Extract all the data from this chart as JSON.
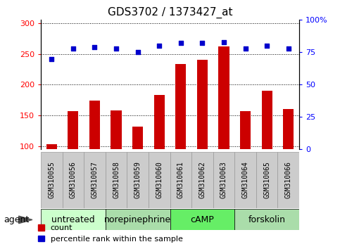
{
  "title": "GDS3702 / 1373427_at",
  "samples": [
    "GSM310055",
    "GSM310056",
    "GSM310057",
    "GSM310058",
    "GSM310059",
    "GSM310060",
    "GSM310061",
    "GSM310062",
    "GSM310063",
    "GSM310064",
    "GSM310065",
    "GSM310066"
  ],
  "counts": [
    103,
    157,
    174,
    158,
    132,
    183,
    233,
    240,
    262,
    157,
    190,
    160
  ],
  "percentiles": [
    70,
    78,
    79,
    78,
    75,
    80,
    82,
    82,
    83,
    78,
    80,
    78
  ],
  "groups": [
    {
      "label": "untreated",
      "start": 0,
      "end": 3,
      "color": "#ccffcc"
    },
    {
      "label": "norepinephrine",
      "start": 3,
      "end": 6,
      "color": "#aaddaa"
    },
    {
      "label": "cAMP",
      "start": 6,
      "end": 9,
      "color": "#66ee66"
    },
    {
      "label": "forskolin",
      "start": 9,
      "end": 12,
      "color": "#aaddaa"
    }
  ],
  "ylim_left": [
    95,
    305
  ],
  "ylim_right": [
    0,
    100
  ],
  "yticks_left": [
    100,
    150,
    200,
    250,
    300
  ],
  "yticks_right": [
    0,
    25,
    50,
    75,
    100
  ],
  "bar_color": "#cc0000",
  "dot_color": "#0000cc",
  "bar_width": 0.5,
  "title_fontsize": 11,
  "tick_fontsize": 8,
  "legend_fontsize": 8,
  "group_label_fontsize": 9,
  "sample_fontsize": 7
}
